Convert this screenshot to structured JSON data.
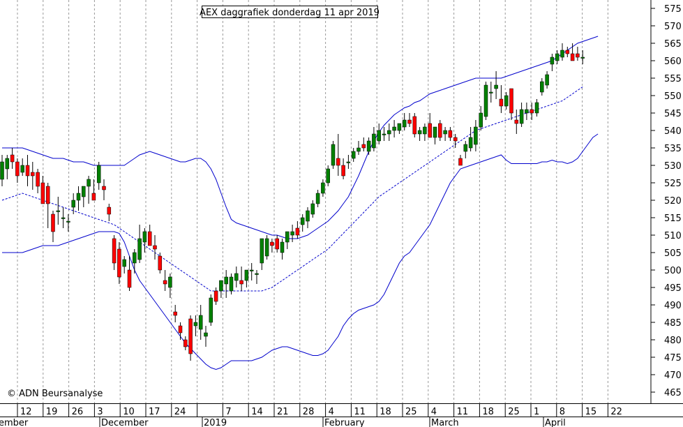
{
  "chart_data": {
    "type": "candlestick",
    "title": "AEX daggrafiek donderdag 11 apr 2019",
    "copyright": "© ADN Beursanalyse",
    "ylim": [
      461,
      579
    ],
    "y_ticks": [
      465,
      470,
      475,
      480,
      485,
      490,
      495,
      500,
      505,
      510,
      515,
      520,
      525,
      530,
      535,
      540,
      545,
      550,
      555,
      560,
      565,
      570,
      575
    ],
    "x_day_ticks": [
      "12",
      "19",
      "26",
      "3",
      "10",
      "17",
      "24",
      "",
      "7",
      "14",
      "21",
      "28",
      "4",
      "11",
      "18",
      "25",
      "4",
      "11",
      "18",
      "25",
      "1",
      "8",
      "15",
      "22"
    ],
    "x_month_labels": [
      "ember",
      "December",
      "2019",
      "February",
      "March",
      "April"
    ],
    "colors": {
      "up": "#008000",
      "down": "#ff0000",
      "band": "#0000cc",
      "grid": "#999999"
    },
    "candles": [
      {
        "o": 526,
        "h": 533,
        "l": 524,
        "c": 531
      },
      {
        "o": 529,
        "h": 533,
        "l": 526,
        "c": 532
      },
      {
        "o": 533,
        "h": 535,
        "l": 529,
        "c": 531
      },
      {
        "o": 531,
        "h": 532,
        "l": 525,
        "c": 527
      },
      {
        "o": 528,
        "h": 532,
        "l": 527,
        "c": 530
      },
      {
        "o": 530,
        "h": 533,
        "l": 524,
        "c": 527
      },
      {
        "o": 528,
        "h": 531,
        "l": 523,
        "c": 527
      },
      {
        "o": 528,
        "h": 529,
        "l": 522,
        "c": 524
      },
      {
        "o": 525,
        "h": 527,
        "l": 519,
        "c": 519
      },
      {
        "o": 524,
        "h": 525,
        "l": 512,
        "c": 519
      },
      {
        "o": 516,
        "h": 517,
        "l": 508,
        "c": 511
      },
      {
        "o": 517,
        "h": 521,
        "l": 513,
        "c": 517
      },
      {
        "o": 515,
        "h": 518,
        "l": 512,
        "c": 515
      },
      {
        "o": 514,
        "h": 516,
        "l": 511,
        "c": 514
      },
      {
        "o": 518,
        "h": 522,
        "l": 516,
        "c": 520
      },
      {
        "o": 520,
        "h": 524,
        "l": 517,
        "c": 522
      },
      {
        "o": 521,
        "h": 524,
        "l": 518,
        "c": 524
      },
      {
        "o": 524,
        "h": 527,
        "l": 519,
        "c": 526
      },
      {
        "o": 522,
        "h": 526,
        "l": 520,
        "c": 520
      },
      {
        "o": 525,
        "h": 531,
        "l": 523,
        "c": 530
      },
      {
        "o": 524,
        "h": 526,
        "l": 520,
        "c": 523
      },
      {
        "o": 518,
        "h": 519,
        "l": 514,
        "c": 516
      },
      {
        "o": 509,
        "h": 510,
        "l": 500,
        "c": 502
      },
      {
        "o": 506,
        "h": 508,
        "l": 496,
        "c": 498
      },
      {
        "o": 501,
        "h": 504,
        "l": 499,
        "c": 503
      },
      {
        "o": 500,
        "h": 504,
        "l": 494,
        "c": 495
      },
      {
        "o": 502,
        "h": 506,
        "l": 499,
        "c": 505
      },
      {
        "o": 503,
        "h": 513,
        "l": 502,
        "c": 509
      },
      {
        "o": 508,
        "h": 512,
        "l": 505,
        "c": 511
      },
      {
        "o": 511,
        "h": 513,
        "l": 507,
        "c": 507
      },
      {
        "o": 507,
        "h": 510,
        "l": 503,
        "c": 506
      },
      {
        "o": 504,
        "h": 505,
        "l": 499,
        "c": 500
      },
      {
        "o": 497,
        "h": 500,
        "l": 494,
        "c": 496
      },
      {
        "o": 495,
        "h": 499,
        "l": 492,
        "c": 498
      },
      {
        "o": 488,
        "h": 490,
        "l": 485,
        "c": 487
      },
      {
        "o": 484,
        "h": 485,
        "l": 480,
        "c": 482
      },
      {
        "o": 480,
        "h": 481,
        "l": 477,
        "c": 478
      },
      {
        "o": 486,
        "h": 487,
        "l": 474,
        "c": 476
      },
      {
        "o": 484,
        "h": 487,
        "l": 481,
        "c": 485
      },
      {
        "o": 483,
        "h": 490,
        "l": 480,
        "c": 487
      },
      {
        "o": 481,
        "h": 484,
        "l": 478,
        "c": 482
      },
      {
        "o": 485,
        "h": 493,
        "l": 484,
        "c": 492
      },
      {
        "o": 494,
        "h": 495,
        "l": 490,
        "c": 491
      },
      {
        "o": 494,
        "h": 497,
        "l": 492,
        "c": 497
      },
      {
        "o": 496,
        "h": 500,
        "l": 492,
        "c": 498
      },
      {
        "o": 494,
        "h": 499,
        "l": 493,
        "c": 498
      },
      {
        "o": 497,
        "h": 501,
        "l": 495,
        "c": 499
      },
      {
        "o": 497,
        "h": 501,
        "l": 494,
        "c": 496
      },
      {
        "o": 497,
        "h": 500,
        "l": 495,
        "c": 500
      },
      {
        "o": 500,
        "h": 502,
        "l": 497,
        "c": 500
      },
      {
        "o": 499,
        "h": 500,
        "l": 496,
        "c": 499
      },
      {
        "o": 502,
        "h": 508,
        "l": 500,
        "c": 509
      },
      {
        "o": 504,
        "h": 510,
        "l": 503,
        "c": 509
      },
      {
        "o": 508,
        "h": 509,
        "l": 505,
        "c": 507
      },
      {
        "o": 509,
        "h": 510,
        "l": 505,
        "c": 506
      },
      {
        "o": 505,
        "h": 509,
        "l": 503,
        "c": 508
      },
      {
        "o": 508,
        "h": 511,
        "l": 506,
        "c": 511
      },
      {
        "o": 510,
        "h": 513,
        "l": 508,
        "c": 511
      },
      {
        "o": 512,
        "h": 514,
        "l": 509,
        "c": 510
      },
      {
        "o": 513,
        "h": 516,
        "l": 511,
        "c": 515
      },
      {
        "o": 514,
        "h": 518,
        "l": 512,
        "c": 517
      },
      {
        "o": 516,
        "h": 520,
        "l": 515,
        "c": 519
      },
      {
        "o": 519,
        "h": 523,
        "l": 518,
        "c": 522
      },
      {
        "o": 522,
        "h": 526,
        "l": 521,
        "c": 525
      },
      {
        "o": 525,
        "h": 530,
        "l": 524,
        "c": 529
      },
      {
        "o": 530,
        "h": 537,
        "l": 529,
        "c": 536
      },
      {
        "o": 532,
        "h": 539,
        "l": 527,
        "c": 530
      },
      {
        "o": 530,
        "h": 532,
        "l": 526,
        "c": 527
      },
      {
        "o": 531,
        "h": 533,
        "l": 529,
        "c": 531
      },
      {
        "o": 532,
        "h": 535,
        "l": 531,
        "c": 534
      },
      {
        "o": 534,
        "h": 537,
        "l": 533,
        "c": 535
      },
      {
        "o": 536,
        "h": 538,
        "l": 534,
        "c": 535
      },
      {
        "o": 534,
        "h": 538,
        "l": 533,
        "c": 537
      },
      {
        "o": 535,
        "h": 541,
        "l": 534,
        "c": 539
      },
      {
        "o": 537,
        "h": 542,
        "l": 536,
        "c": 540
      },
      {
        "o": 539,
        "h": 541,
        "l": 537,
        "c": 539
      },
      {
        "o": 539,
        "h": 542,
        "l": 537,
        "c": 540
      },
      {
        "o": 540,
        "h": 543,
        "l": 538,
        "c": 541
      },
      {
        "o": 540,
        "h": 542,
        "l": 539,
        "c": 542
      },
      {
        "o": 541,
        "h": 545,
        "l": 540,
        "c": 543
      },
      {
        "o": 543,
        "h": 545,
        "l": 541,
        "c": 542
      },
      {
        "o": 544,
        "h": 545,
        "l": 538,
        "c": 539
      },
      {
        "o": 539,
        "h": 541,
        "l": 537,
        "c": 540
      },
      {
        "o": 539,
        "h": 542,
        "l": 537,
        "c": 541
      },
      {
        "o": 542,
        "h": 545,
        "l": 538,
        "c": 538
      },
      {
        "o": 538,
        "h": 541,
        "l": 536,
        "c": 541
      },
      {
        "o": 542,
        "h": 543,
        "l": 537,
        "c": 538
      },
      {
        "o": 539,
        "h": 541,
        "l": 537,
        "c": 540
      },
      {
        "o": 540,
        "h": 541,
        "l": 537,
        "c": 538
      },
      {
        "o": 538,
        "h": 539,
        "l": 535,
        "c": 537
      },
      {
        "o": 532,
        "h": 533,
        "l": 530,
        "c": 530
      },
      {
        "o": 534,
        "h": 537,
        "l": 532,
        "c": 536
      },
      {
        "o": 535,
        "h": 541,
        "l": 534,
        "c": 538
      },
      {
        "o": 536,
        "h": 543,
        "l": 534,
        "c": 541
      },
      {
        "o": 541,
        "h": 547,
        "l": 540,
        "c": 545
      },
      {
        "o": 544,
        "h": 554,
        "l": 543,
        "c": 553
      },
      {
        "o": 551,
        "h": 554,
        "l": 548,
        "c": 551
      },
      {
        "o": 552,
        "h": 557,
        "l": 549,
        "c": 553
      },
      {
        "o": 549,
        "h": 553,
        "l": 545,
        "c": 547
      },
      {
        "o": 547,
        "h": 551,
        "l": 546,
        "c": 550
      },
      {
        "o": 552,
        "h": 552,
        "l": 543,
        "c": 545
      },
      {
        "o": 543,
        "h": 546,
        "l": 539,
        "c": 542
      },
      {
        "o": 542,
        "h": 548,
        "l": 541,
        "c": 546
      },
      {
        "o": 545,
        "h": 548,
        "l": 543,
        "c": 546
      },
      {
        "o": 546,
        "h": 548,
        "l": 543,
        "c": 545
      },
      {
        "o": 545,
        "h": 549,
        "l": 544,
        "c": 548
      },
      {
        "o": 551,
        "h": 555,
        "l": 550,
        "c": 554
      },
      {
        "o": 553,
        "h": 557,
        "l": 552,
        "c": 556
      },
      {
        "o": 559,
        "h": 562,
        "l": 557,
        "c": 561
      },
      {
        "o": 560,
        "h": 563,
        "l": 559,
        "c": 562
      },
      {
        "o": 561,
        "h": 565,
        "l": 560,
        "c": 563
      },
      {
        "o": 563,
        "h": 564,
        "l": 561,
        "c": 562
      },
      {
        "o": 562,
        "h": 565,
        "l": 560,
        "c": 560
      },
      {
        "o": 562,
        "h": 564,
        "l": 560,
        "c": 561
      },
      {
        "o": 561,
        "h": 563,
        "l": 559,
        "c": 561
      }
    ],
    "sma": [
      520.0,
      520.5,
      521.0,
      521.5,
      522.0,
      521.5,
      521.0,
      520.5,
      520.0,
      519.5,
      519.0,
      518.5,
      518.0,
      517.5,
      517.0,
      516.5,
      516.0,
      515.5,
      515.0,
      514.5,
      514.0,
      513.5,
      513.0,
      512.0,
      511.0,
      510.0,
      509.0,
      508.0,
      507.0,
      506.0,
      505.0,
      504.0,
      503.0,
      502.0,
      501.0,
      500.0,
      499.0,
      498.0,
      497.0,
      496.0,
      495.0,
      494.0,
      494.0,
      494.0,
      494.0,
      494.0,
      494.0,
      494.0,
      494.0,
      494.0,
      494.0,
      494.0,
      494.5,
      495.0,
      496.0,
      497.0,
      498.0,
      499.0,
      500.0,
      501.0,
      502.0,
      503.0,
      504.0,
      505.0,
      506.0,
      507.5,
      509.0,
      510.5,
      512.0,
      513.5,
      515.0,
      516.5,
      518.0,
      519.5,
      521.0,
      522.0,
      523.0,
      524.0,
      525.0,
      526.0,
      527.0,
      528.0,
      529.0,
      530.0,
      531.0,
      532.0,
      533.0,
      534.0,
      535.0,
      536.0,
      537.0,
      538.0,
      539.0,
      540.0,
      540.5,
      541.0,
      541.5,
      542.0,
      542.5,
      543.0,
      543.5,
      544.0,
      544.5,
      545.0,
      545.5,
      546.0,
      546.5,
      547.0,
      547.5,
      548.0,
      548.5,
      549.5,
      550.5,
      551.5,
      552.5
    ],
    "upper": [
      535.0,
      535.0,
      535.0,
      535.0,
      535.0,
      534.5,
      534.0,
      533.5,
      533.0,
      532.5,
      532.0,
      532.0,
      532.0,
      531.5,
      531.0,
      531.0,
      531.0,
      530.5,
      530.0,
      530.0,
      530.0,
      530.0,
      530.0,
      530.0,
      530.0,
      531.0,
      532.0,
      533.0,
      533.5,
      534.0,
      533.5,
      533.0,
      532.5,
      532.0,
      531.5,
      531.0,
      531.0,
      531.5,
      532.0,
      532.0,
      531.0,
      529.0,
      526.0,
      522.0,
      518.0,
      514.5,
      513.5,
      513.0,
      512.5,
      512.0,
      511.5,
      511.0,
      510.5,
      510.0,
      510.0,
      509.5,
      509.0,
      509.0,
      509.0,
      509.5,
      510.0,
      511.0,
      512.0,
      513.0,
      514.0,
      515.5,
      517.0,
      519.0,
      521.0,
      524.0,
      527.0,
      530.5,
      534.0,
      537.0,
      539.5,
      541.5,
      543.0,
      544.5,
      545.5,
      546.5,
      547.0,
      548.0,
      548.5,
      549.5,
      550.5,
      551.0,
      551.5,
      552.0,
      552.5,
      553.0,
      553.5,
      554.0,
      554.5,
      555.0,
      555.0,
      555.0,
      555.0,
      555.0,
      555.0,
      555.5,
      556.0,
      556.5,
      557.0,
      557.5,
      558.0,
      558.5,
      559.0,
      559.5,
      560.0,
      561.0,
      562.0,
      563.0,
      564.0,
      565.0,
      565.5,
      566.0,
      566.5,
      567.0
    ],
    "lower": [
      505.0,
      505.0,
      505.0,
      505.0,
      505.0,
      505.5,
      506.0,
      506.5,
      507.0,
      507.0,
      507.0,
      507.0,
      507.5,
      508.0,
      508.5,
      509.0,
      509.5,
      510.0,
      510.5,
      511.0,
      511.0,
      511.0,
      511.0,
      510.5,
      508.0,
      504.0,
      500.0,
      497.0,
      495.0,
      493.0,
      491.0,
      489.0,
      487.0,
      485.0,
      483.0,
      481.0,
      479.0,
      477.5,
      476.0,
      474.5,
      473.0,
      472.0,
      471.5,
      472.0,
      473.0,
      474.0,
      474.0,
      474.0,
      474.0,
      474.0,
      474.5,
      475.0,
      476.0,
      477.0,
      477.5,
      478.0,
      478.0,
      477.5,
      477.0,
      476.5,
      476.0,
      475.5,
      475.5,
      476.0,
      477.0,
      479.0,
      481.0,
      484.0,
      486.0,
      487.5,
      488.5,
      489.0,
      489.5,
      490.0,
      491.0,
      493.0,
      496.0,
      499.0,
      502.0,
      504.0,
      505.0,
      507.0,
      509.0,
      511.0,
      513.0,
      516.0,
      519.0,
      522.0,
      525.0,
      527.0,
      529.0,
      529.5,
      530.0,
      530.5,
      531.0,
      531.5,
      532.0,
      532.5,
      533.0,
      531.5,
      530.5,
      530.5,
      530.5,
      530.5,
      530.5,
      530.5,
      531.0,
      531.0,
      531.5,
      531.0,
      531.0,
      530.5,
      531.0,
      532.0,
      534.0,
      536.0,
      538.0,
      539.0
    ]
  }
}
